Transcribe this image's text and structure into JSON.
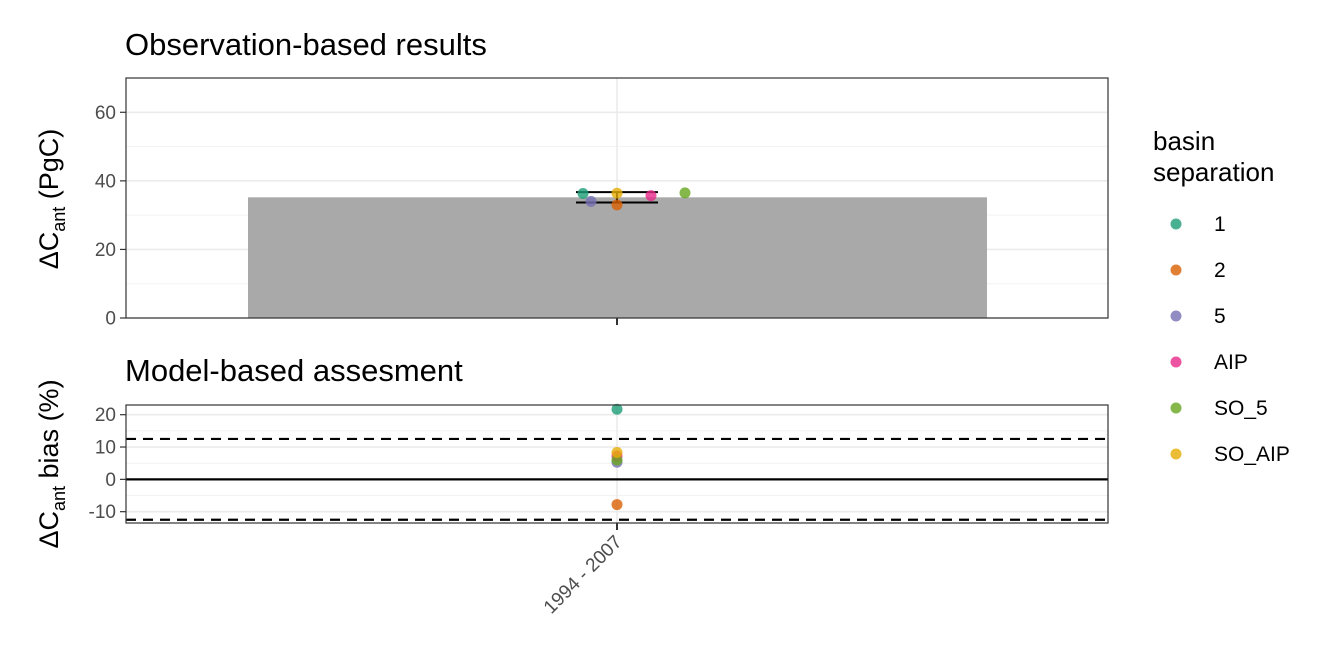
{
  "chart_data": [
    {
      "type": "bar",
      "title": "Observation-based results",
      "ylabel": {
        "main": "ΔC",
        "sub": "ant",
        "tail": " (PgC)"
      },
      "categories": [
        "1994 - 2007"
      ],
      "ylim": [
        0,
        70
      ],
      "yticks": [
        0,
        20,
        40,
        60
      ],
      "bar": {
        "value": 35.2,
        "color": "#A9A9A9"
      },
      "errorbar": {
        "low": 33.7,
        "high": 36.7
      },
      "series": [
        {
          "name": "1",
          "value": 36.3
        },
        {
          "name": "2",
          "value": 33.0
        },
        {
          "name": "5",
          "value": 34.0
        },
        {
          "name": "AIP",
          "value": 35.7
        },
        {
          "name": "SO_5",
          "value": 36.5
        },
        {
          "name": "SO_AIP",
          "value": 36.4
        }
      ],
      "grid": true
    },
    {
      "type": "scatter",
      "title": "Model-based assesment",
      "ylabel": {
        "main": "ΔC",
        "sub": "ant",
        "tail": " bias (%)"
      },
      "categories": [
        "1994 - 2007"
      ],
      "ylim": [
        -13.5,
        23
      ],
      "yticks": [
        -10,
        0,
        10,
        20
      ],
      "ytick_labels": [
        "-10",
        "0",
        "10",
        "20"
      ],
      "reference_lines": {
        "solid": 0,
        "dashed": [
          12.5,
          -12.5
        ]
      },
      "series": [
        {
          "name": "1",
          "value": 21.7
        },
        {
          "name": "2",
          "value": -7.8
        },
        {
          "name": "5",
          "value": 5.3
        },
        {
          "name": "AIP",
          "value": 7.2
        },
        {
          "name": "SO_5",
          "value": 6.0
        },
        {
          "name": "SO_AIP",
          "value": 8.3
        }
      ],
      "grid": true
    }
  ],
  "legend": {
    "title_line1": "basin",
    "title_line2": "separation",
    "placement": "right",
    "entries": [
      {
        "label": "1",
        "color": "#1B9E77"
      },
      {
        "label": "2",
        "color": "#D95F02"
      },
      {
        "label": "5",
        "color": "#7570B3"
      },
      {
        "label": "AIP",
        "color": "#E7298A"
      },
      {
        "label": "SO_5",
        "color": "#66A61E"
      },
      {
        "label": "SO_AIP",
        "color": "#E6AB02"
      }
    ]
  }
}
